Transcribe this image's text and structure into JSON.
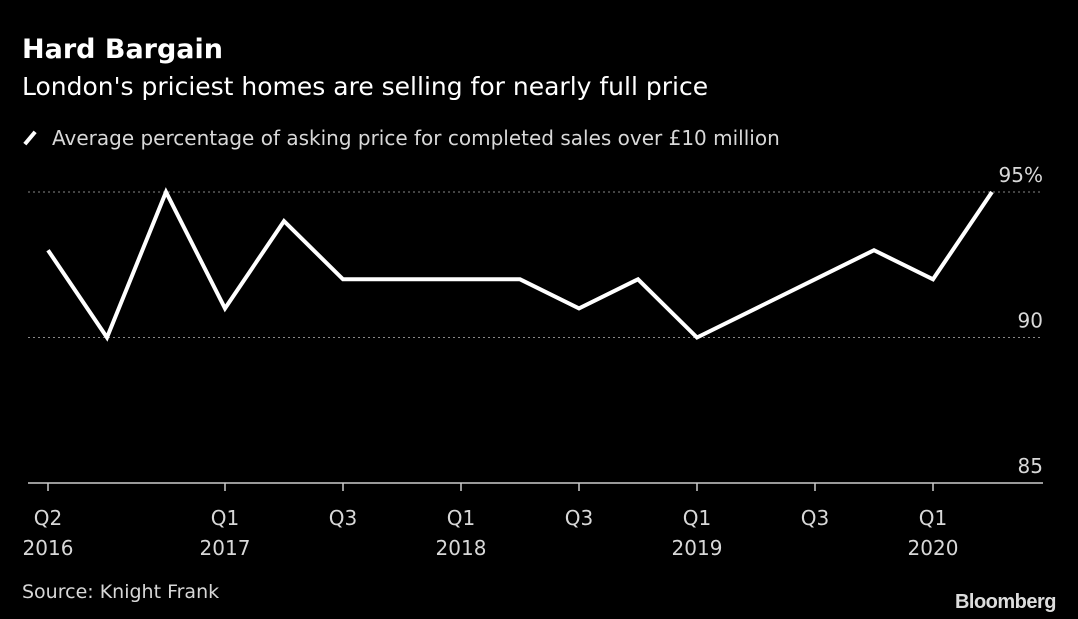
{
  "chart_data": {
    "type": "line",
    "title": "Hard Bargain",
    "subtitle": "London's priciest homes are selling for nearly full price",
    "legend": [
      "Average percentage of asking price for completed sales over £10 million"
    ],
    "legend_placement": "top-left",
    "x": [
      "Q2 2016",
      "Q3 2016",
      "Q4 2016",
      "Q1 2017",
      "Q2 2017",
      "Q3 2017",
      "Q4 2017",
      "Q1 2018",
      "Q2 2018",
      "Q3 2018",
      "Q4 2018",
      "Q1 2019",
      "Q2 2019",
      "Q3 2019",
      "Q4 2019",
      "Q1 2020",
      "Q2 2020"
    ],
    "series": [
      {
        "name": "Average percentage of asking price for completed sales over £10 million",
        "values": [
          93,
          90,
          95,
          91,
          94,
          92,
          92,
          92,
          92,
          91,
          92,
          90,
          91,
          92,
          93,
          92,
          95
        ]
      }
    ],
    "xticks": [
      {
        "index": 0,
        "q": "Q2",
        "year": "2016"
      },
      {
        "index": 3,
        "q": "Q1",
        "year": "2017"
      },
      {
        "index": 5,
        "q": "Q3",
        "year": ""
      },
      {
        "index": 7,
        "q": "Q1",
        "year": "2018"
      },
      {
        "index": 9,
        "q": "Q3",
        "year": ""
      },
      {
        "index": 11,
        "q": "Q1",
        "year": "2019"
      },
      {
        "index": 13,
        "q": "Q3",
        "year": ""
      },
      {
        "index": 15,
        "q": "Q1",
        "year": "2020"
      }
    ],
    "yticks": [
      {
        "value": 95,
        "label": "95%"
      },
      {
        "value": 90,
        "label": "90"
      },
      {
        "value": 85,
        "label": "85"
      }
    ],
    "ylim": [
      85,
      95
    ],
    "xlabel": "",
    "ylabel": "",
    "grid": true
  },
  "source": "Source: Knight Frank",
  "logo": "Bloomberg",
  "colors": {
    "background": "#000000",
    "line": "#ffffff",
    "text": "#d8d8d8"
  }
}
